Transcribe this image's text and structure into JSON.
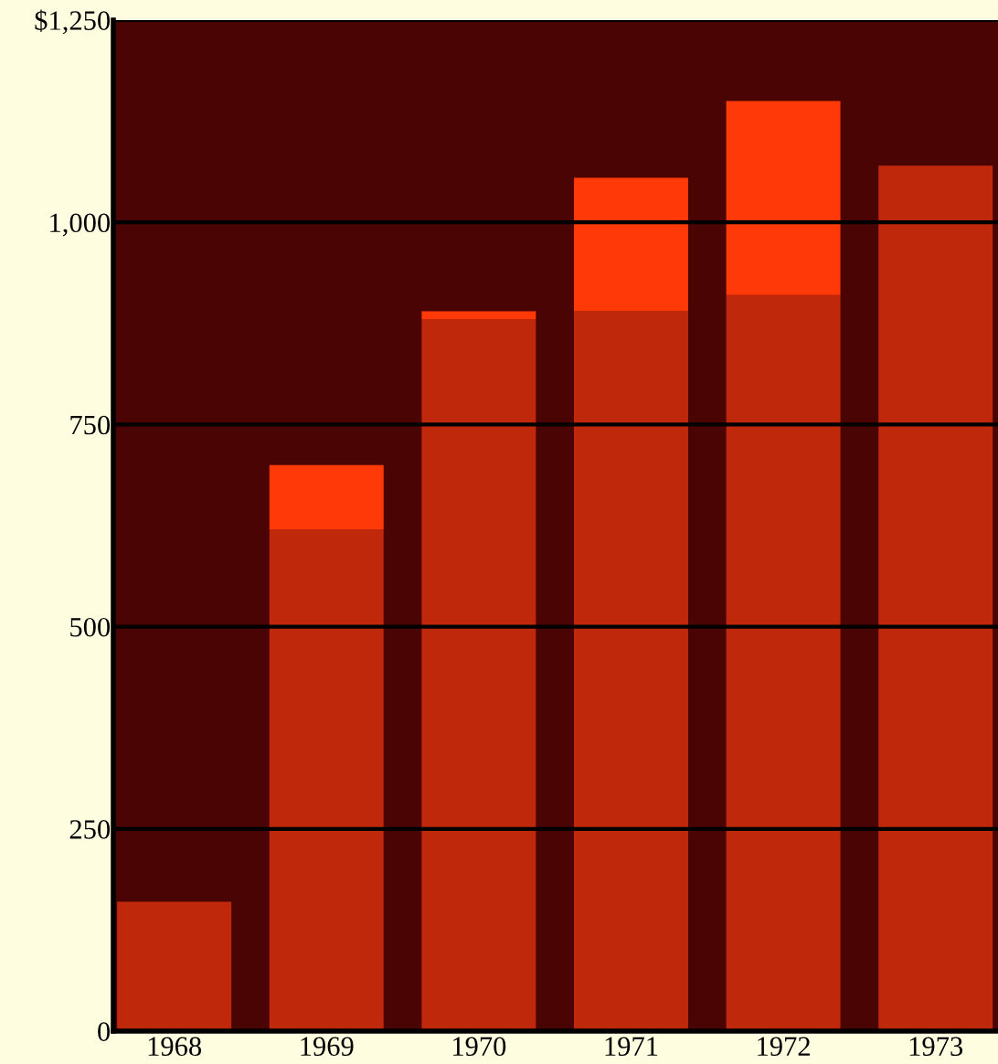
{
  "chart_data": {
    "type": "bar",
    "stacked": true,
    "categories": [
      "1968",
      "1969",
      "1970",
      "1971",
      "1972",
      "1973"
    ],
    "series": [
      {
        "color": "#c0280c",
        "values": [
          160,
          620,
          880,
          890,
          910,
          1070
        ]
      },
      {
        "color": "#ff3a08",
        "values": [
          0,
          80,
          10,
          165,
          240,
          0
        ]
      }
    ],
    "ylim": [
      0,
      1250
    ],
    "yticks": [
      0,
      250,
      500,
      750,
      {
        "value": 1000,
        "label": "1,000"
      },
      {
        "value": 1250,
        "label": "$1,250"
      }
    ],
    "grid": "y",
    "legend": false
  }
}
